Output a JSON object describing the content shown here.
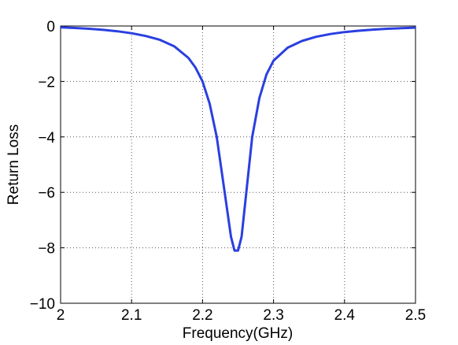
{
  "chart_data": {
    "type": "line",
    "title": "",
    "xlabel": "Frequency(GHz)",
    "ylabel": "Return Loss",
    "xlim": [
      2.0,
      2.5
    ],
    "ylim": [
      -10,
      0
    ],
    "x_ticks": [
      2.0,
      2.1,
      2.2,
      2.3,
      2.4,
      2.5
    ],
    "x_tick_labels": [
      "2",
      "2.1",
      "2.2",
      "2.3",
      "2.4",
      "2.5"
    ],
    "y_ticks": [
      0,
      -2,
      -4,
      -6,
      -8,
      -10
    ],
    "y_tick_labels": [
      "0",
      "−2",
      "−4",
      "−6",
      "−8",
      "−10"
    ],
    "grid": true,
    "series": [
      {
        "color": "#2a3fe0",
        "x": [
          2.0,
          2.02,
          2.04,
          2.06,
          2.08,
          2.1,
          2.12,
          2.14,
          2.16,
          2.18,
          2.19,
          2.2,
          2.21,
          2.22,
          2.23,
          2.24,
          2.245,
          2.25,
          2.255,
          2.26,
          2.27,
          2.28,
          2.29,
          2.3,
          2.32,
          2.34,
          2.36,
          2.38,
          2.4,
          2.42,
          2.44,
          2.46,
          2.48,
          2.5
        ],
        "y": [
          -0.05,
          -0.07,
          -0.1,
          -0.14,
          -0.19,
          -0.26,
          -0.36,
          -0.5,
          -0.73,
          -1.15,
          -1.5,
          -2.0,
          -2.8,
          -4.0,
          -5.8,
          -7.6,
          -8.1,
          -8.1,
          -7.6,
          -6.4,
          -4.0,
          -2.6,
          -1.75,
          -1.25,
          -0.78,
          -0.54,
          -0.39,
          -0.29,
          -0.22,
          -0.17,
          -0.13,
          -0.1,
          -0.08,
          -0.06
        ]
      }
    ]
  }
}
